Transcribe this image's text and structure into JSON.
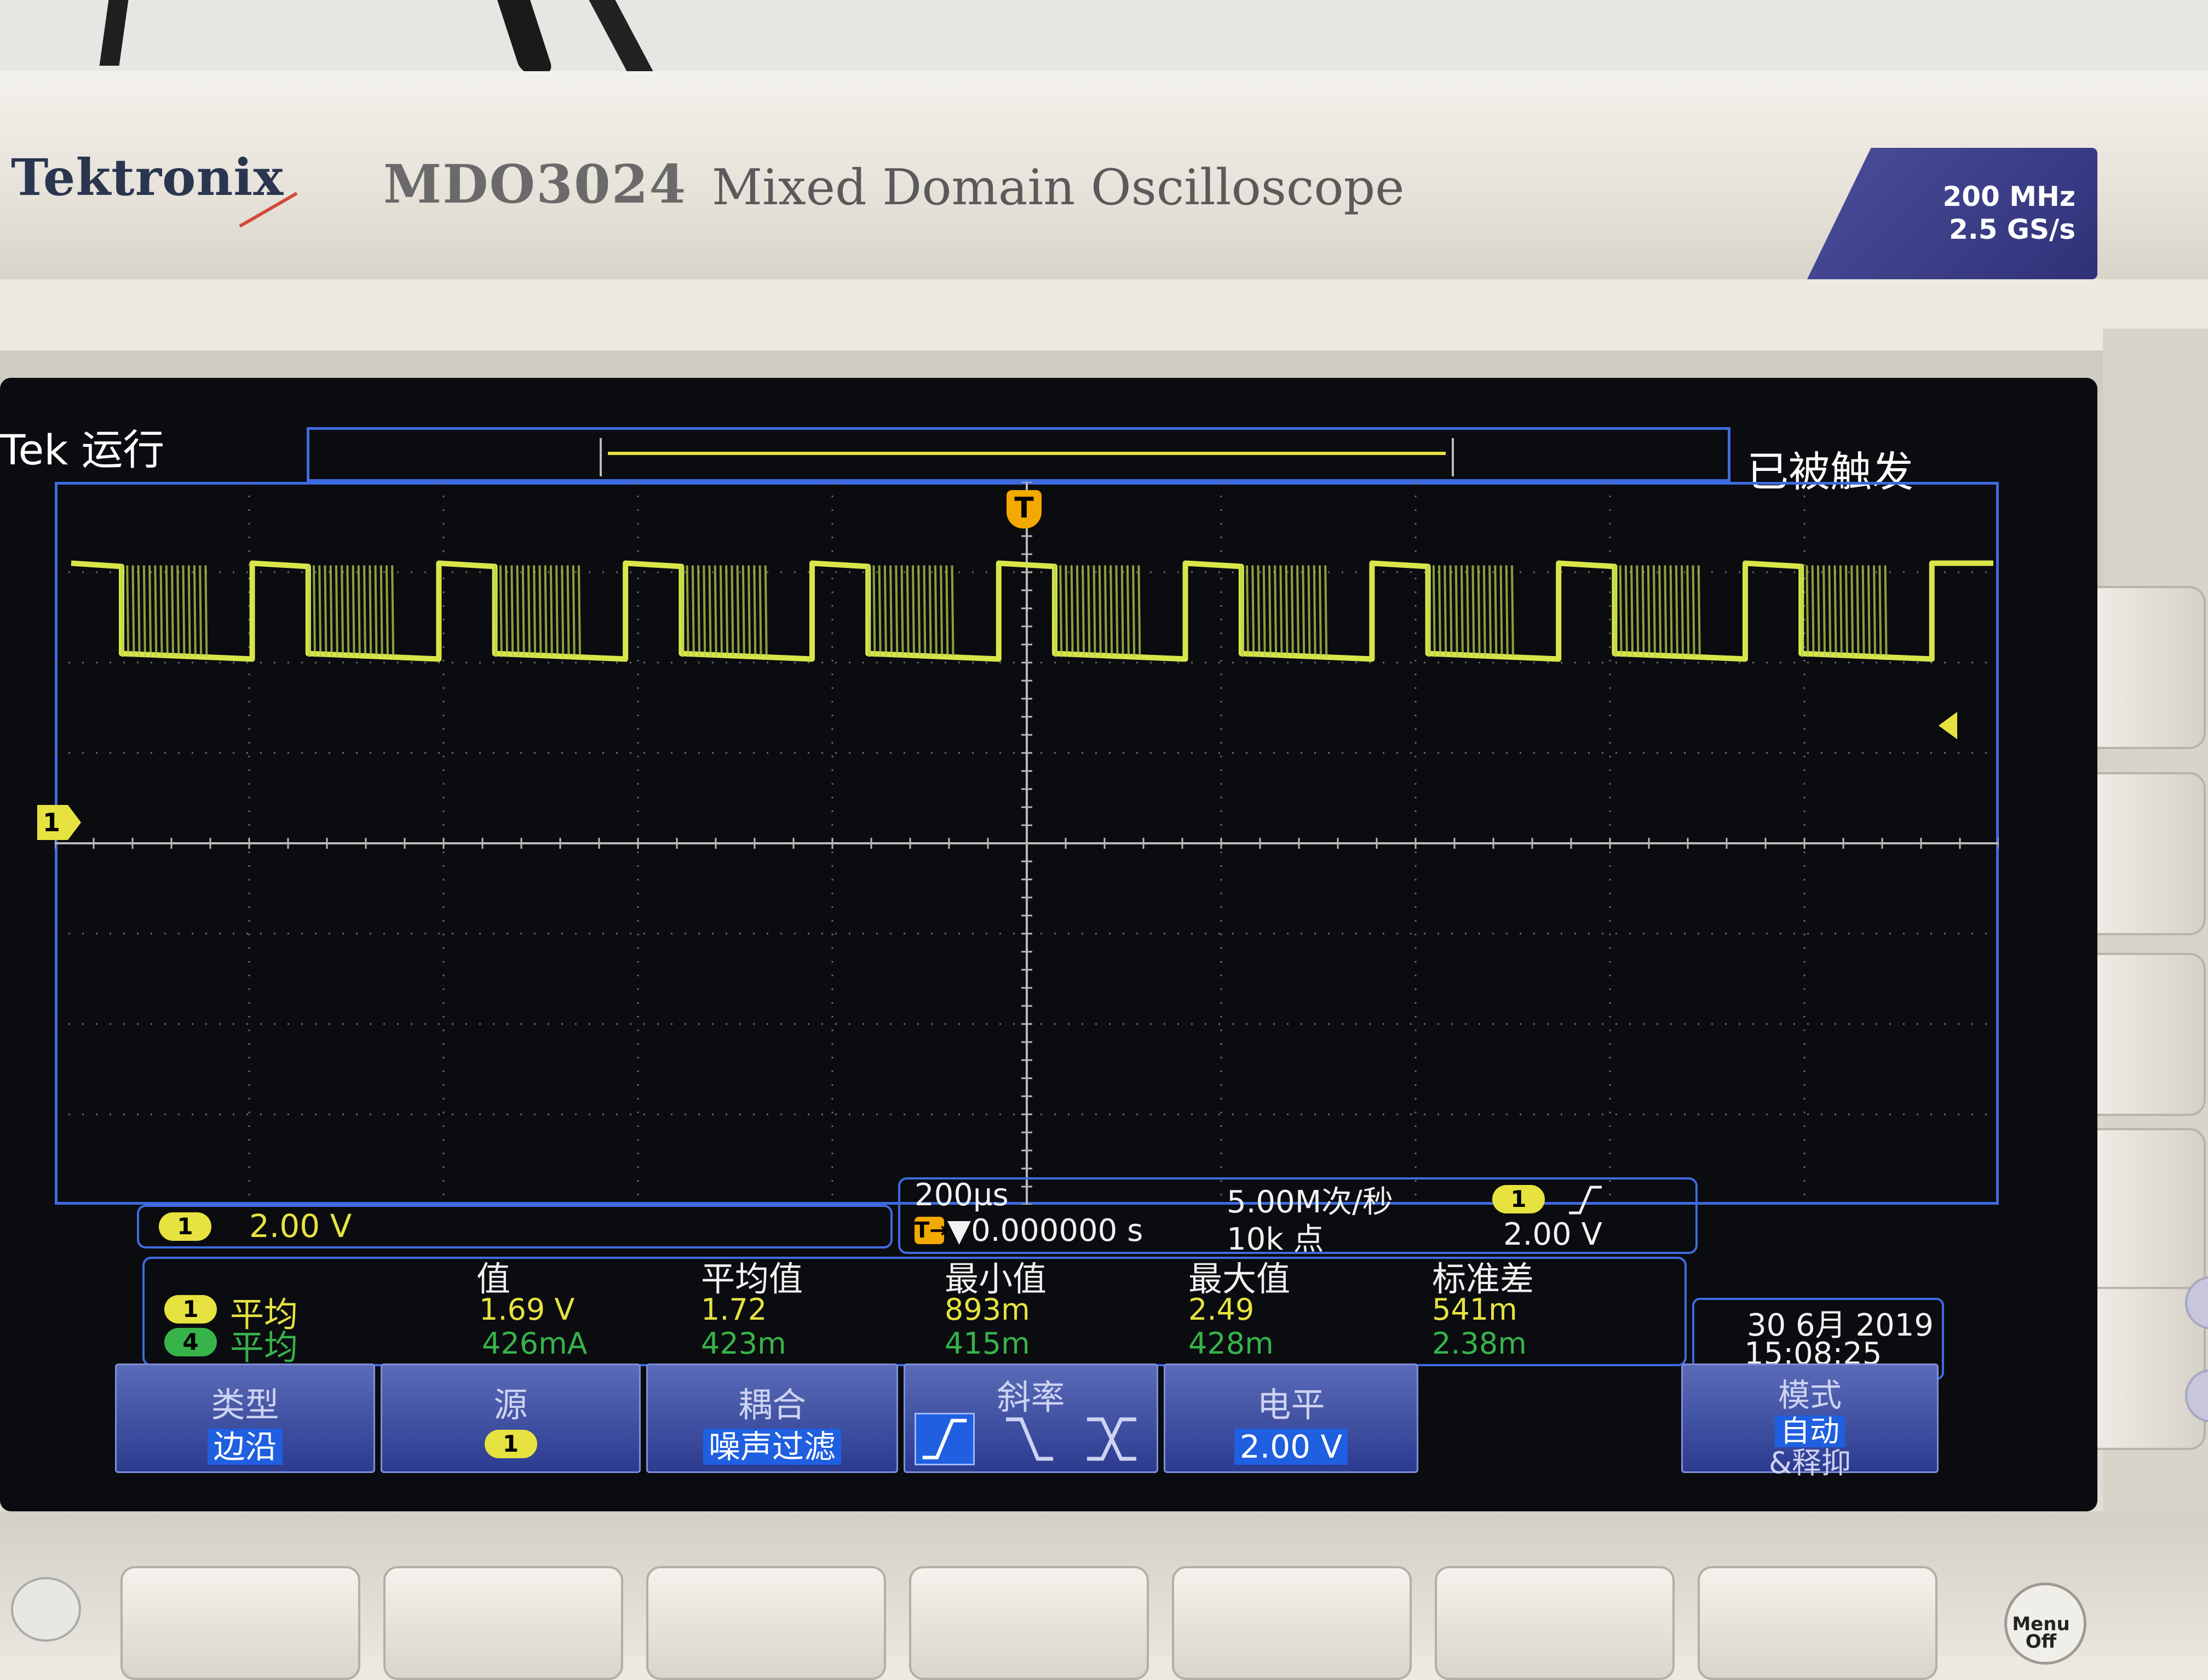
{
  "chassis": {
    "brand": "Tektronix",
    "model": "MDO3024",
    "model_desc": "Mixed Domain Oscilloscope",
    "spec_bandwidth": "200 MHz",
    "spec_sample_rate": "2.5 GS/s",
    "menu_button_line1": "Menu",
    "menu_button_line2": "Off"
  },
  "screen": {
    "run_status": "Tek 运行",
    "trigger_status": "已被触发",
    "trigger_marker": "T",
    "ch1_marker": "1",
    "colors": {
      "ch1": "#e6e340",
      "ch4": "#37b34a",
      "frame": "#3f6be0",
      "trigger": "#f2a900"
    }
  },
  "channel1": {
    "badge": "1",
    "scale": "2.00 V"
  },
  "horizontal": {
    "time_div": "200µs",
    "sample_rate": "5.00M次/秒",
    "trigger_position_icon": "T→",
    "trigger_position": "▼0.000000 s",
    "record_length": "10k 点",
    "trigger_source_badge": "1",
    "trigger_slope_icon": "rising-edge-icon",
    "trigger_level": "2.00 V"
  },
  "measurements": {
    "headers": [
      "值",
      "平均值",
      "最小值",
      "最大值",
      "标准差"
    ],
    "rows": [
      {
        "channel": "1",
        "label": "平均",
        "values": [
          "1.69 V",
          "1.72",
          "893m",
          "2.49",
          "541m"
        ]
      },
      {
        "channel": "4",
        "label": "平均",
        "values": [
          "426mA",
          "423m",
          "415m",
          "428m",
          "2.38m"
        ]
      }
    ]
  },
  "datetime": {
    "date": "30 6月 2019",
    "time": "15:08:25"
  },
  "softkeys": {
    "type_title": "类型",
    "type_value": "边沿",
    "source_title": "源",
    "source_value": "1",
    "coupling_title": "耦合",
    "coupling_value": "噪声过滤",
    "slope_title": "斜率",
    "level_title": "电平",
    "level_value": "2.00 V",
    "mode_title": "模式",
    "mode_value": "自动",
    "mode_suffix": "&释抑"
  },
  "waveform": {
    "channel": 1,
    "high_level_div": 3.1,
    "low_level_div": 2.1,
    "period_divisions": 0.96,
    "pulse_count": 10
  }
}
